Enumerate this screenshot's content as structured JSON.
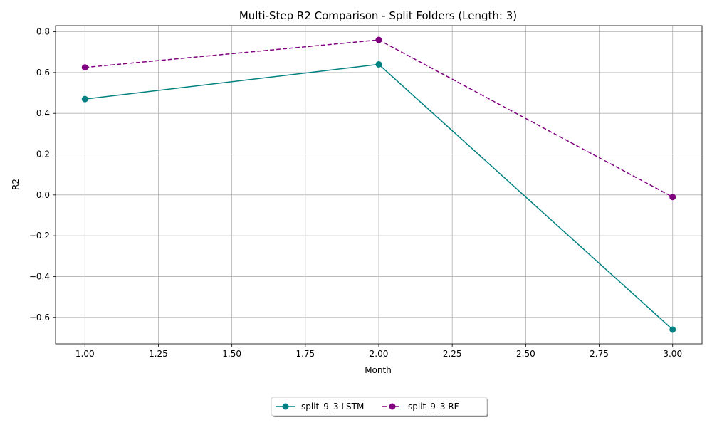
{
  "chart_data": {
    "type": "line",
    "title": "Multi-Step R2 Comparison - Split Folders (Length: 3)",
    "xlabel": "Month",
    "ylabel": "R2",
    "xlim": [
      0.9,
      3.1
    ],
    "ylim": [
      -0.73,
      0.83
    ],
    "x_ticks": [
      1.0,
      1.25,
      1.5,
      1.75,
      2.0,
      2.25,
      2.5,
      2.75,
      3.0
    ],
    "x_tick_labels": [
      "1.00",
      "1.25",
      "1.50",
      "1.75",
      "2.00",
      "2.25",
      "2.50",
      "2.75",
      "3.00"
    ],
    "y_ticks": [
      -0.6,
      -0.4,
      -0.2,
      0.0,
      0.2,
      0.4,
      0.6,
      0.8
    ],
    "y_tick_labels": [
      "−0.6",
      "−0.4",
      "−0.2",
      "0.0",
      "0.2",
      "0.4",
      "0.6",
      "0.8"
    ],
    "grid": true,
    "legend_placement": "bottom-center",
    "x": [
      1,
      2,
      3
    ],
    "series": [
      {
        "name": "split_9_3 LSTM",
        "values": [
          0.47,
          0.64,
          -0.66
        ],
        "color": "#008080",
        "dash": "solid",
        "marker": "circle"
      },
      {
        "name": "split_9_3 RF",
        "values": [
          0.625,
          0.76,
          -0.01
        ],
        "color": "#800080",
        "dash": "dashed",
        "marker": "circle"
      }
    ]
  }
}
